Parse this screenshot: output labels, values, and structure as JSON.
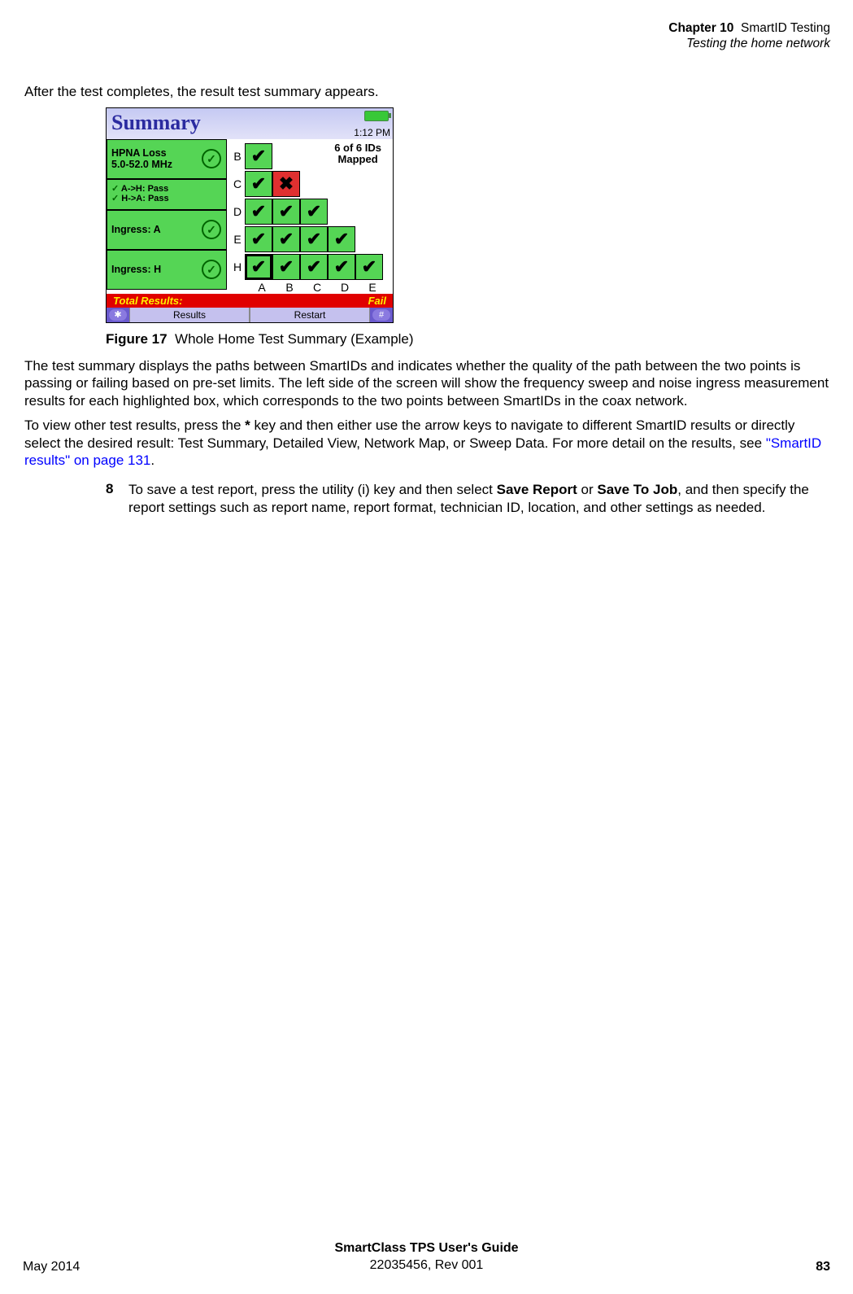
{
  "header": {
    "chapter_label": "Chapter 10",
    "chapter_title": "SmartID Testing",
    "section": "Testing the home network"
  },
  "intro_para": "After the test completes, the result test summary appears.",
  "screenshot": {
    "title": "Summary",
    "time": "1:12 PM",
    "left_boxes": {
      "hpna_line1": "HPNA Loss",
      "hpna_line2": "5.0-52.0 MHz",
      "ah_pass": "A->H: Pass",
      "ha_pass": "H->A: Pass",
      "ingress_a": "Ingress: A",
      "ingress_h": "Ingress: H"
    },
    "matrix": {
      "caption_line1": "6 of 6 IDs",
      "caption_line2": "Mapped",
      "row_labels": [
        "B",
        "C",
        "D",
        "E",
        "H"
      ],
      "col_labels": [
        "A",
        "B",
        "C",
        "D",
        "E"
      ],
      "cells": [
        [
          "pass"
        ],
        [
          "pass",
          "fail"
        ],
        [
          "pass",
          "pass",
          "pass"
        ],
        [
          "pass",
          "pass",
          "pass",
          "pass"
        ],
        [
          "pass",
          "pass",
          "pass",
          "pass",
          "pass"
        ]
      ],
      "highlight_row": 4,
      "highlight_col": 0
    },
    "total_label": "Total Results:",
    "total_value": "Fail",
    "softkeys": {
      "left_icon": "✱",
      "left": "Results",
      "right": "Restart",
      "right_icon": "#"
    }
  },
  "figure": {
    "number": "Figure 17",
    "caption": "Whole Home Test Summary (Example)"
  },
  "para2": "The test summary displays the paths between SmartIDs and indicates whether the quality of the path between the two points is passing or failing based on pre-set limits. The left side of the screen will show the frequency sweep and noise ingress measurement results for each highlighted box, which corresponds to the two points between SmartIDs in the coax network.",
  "para3_pre": "To view other test results, press the ",
  "para3_bold": "*",
  "para3_mid": " key and then either use the arrow keys to navigate to different SmartID results or directly select the desired result: Test Summary, Detailed View, Network Map, or Sweep Data. For more detail on the results, see ",
  "para3_link": "\"SmartID results\" on page 131",
  "para3_post": ".",
  "step8": {
    "num": "8",
    "pre": "To save a test report, press the utility (i) key and then select ",
    "b1": "Save Report",
    "mid1": " or ",
    "b2": "Save To Job",
    "post": ", and then specify the report settings such as report name, report format, technician ID, location, and other settings as needed."
  },
  "footer": {
    "title": "SmartClass TPS User's Guide",
    "docnum": "22035456, Rev 001",
    "date": "May 2014",
    "pagenum": "83"
  }
}
